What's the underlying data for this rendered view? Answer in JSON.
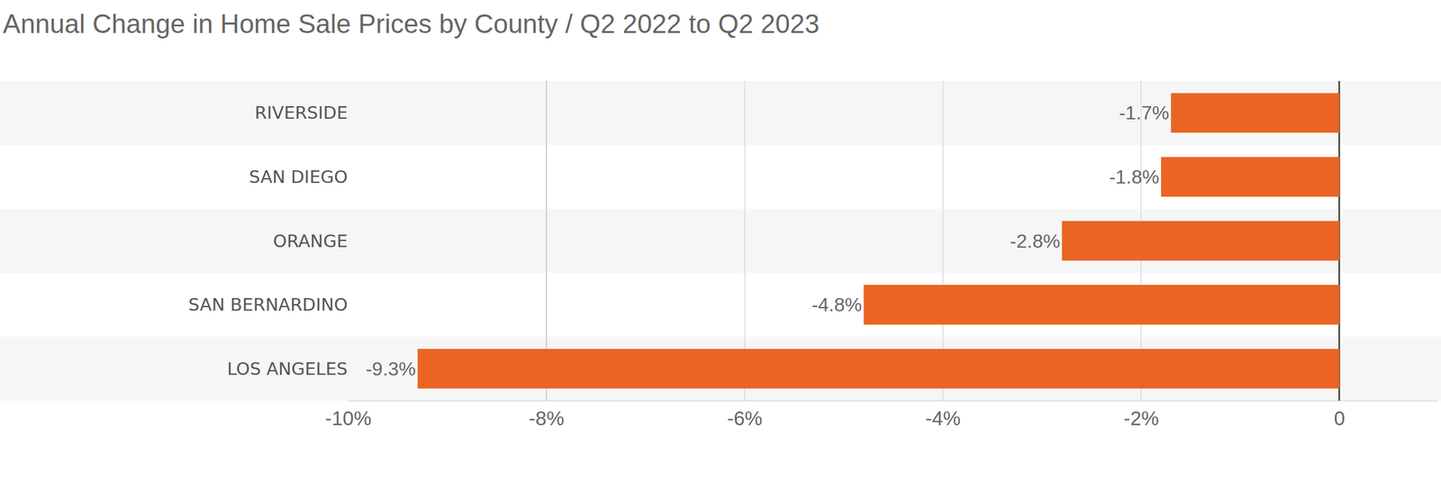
{
  "chart_data": {
    "type": "bar",
    "orientation": "horizontal",
    "title": "Annual Change in Home Sale Prices by County / Q2 2022 to Q2 2023",
    "categories": [
      "RIVERSIDE",
      "SAN DIEGO",
      "ORANGE",
      "SAN BERNARDINO",
      "LOS ANGELES"
    ],
    "values": [
      -1.7,
      -1.8,
      -2.8,
      -4.8,
      -9.3
    ],
    "value_labels": [
      "-1.7%",
      "-1.8%",
      "-2.8%",
      "-4.8%",
      "-9.3%"
    ],
    "color": "#ea6422",
    "xlim": [
      -10,
      1
    ],
    "xticks": [
      {
        "value": -10,
        "label": "-10%"
      },
      {
        "value": -8,
        "label": "-8%"
      },
      {
        "value": -6,
        "label": "-6%"
      },
      {
        "value": -4,
        "label": "-4%"
      },
      {
        "value": -2,
        "label": "-2%"
      },
      0
    ],
    "grid": true,
    "data_labels": true
  }
}
